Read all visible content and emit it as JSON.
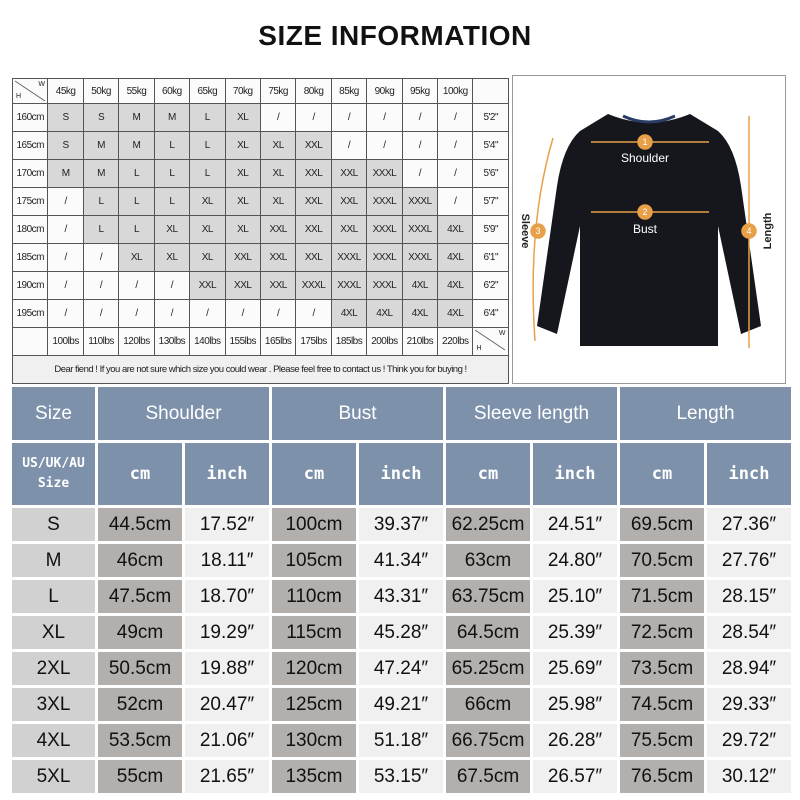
{
  "title": "SIZE INFORMATION",
  "weight_chart": {
    "corner_h": "H",
    "corner_w": "W",
    "weights": [
      "45kg",
      "50kg",
      "55kg",
      "60kg",
      "65kg",
      "70kg",
      "75kg",
      "80kg",
      "85kg",
      "90kg",
      "95kg",
      "100kg"
    ],
    "rows": [
      {
        "height": "160cm",
        "feet": "5'2\"",
        "sizes": [
          "S",
          "S",
          "M",
          "M",
          "L",
          "XL",
          "/",
          "/",
          "/",
          "/",
          "/",
          "/"
        ]
      },
      {
        "height": "165cm",
        "feet": "5'4\"",
        "sizes": [
          "S",
          "M",
          "M",
          "L",
          "L",
          "XL",
          "XL",
          "XXL",
          "/",
          "/",
          "/",
          "/"
        ]
      },
      {
        "height": "170cm",
        "feet": "5'6\"",
        "sizes": [
          "M",
          "M",
          "L",
          "L",
          "L",
          "XL",
          "XL",
          "XXL",
          "XXL",
          "XXXL",
          "/",
          "/"
        ]
      },
      {
        "height": "175cm",
        "feet": "5'7\"",
        "sizes": [
          "/",
          "L",
          "L",
          "L",
          "XL",
          "XL",
          "XL",
          "XXL",
          "XXL",
          "XXXL",
          "XXXL",
          "/"
        ]
      },
      {
        "height": "180cm",
        "feet": "5'9\"",
        "sizes": [
          "/",
          "L",
          "L",
          "XL",
          "XL",
          "XL",
          "XXL",
          "XXL",
          "XXL",
          "XXXL",
          "XXXL",
          "4XL"
        ]
      },
      {
        "height": "185cm",
        "feet": "6'1\"",
        "sizes": [
          "/",
          "/",
          "XL",
          "XL",
          "XL",
          "XXL",
          "XXL",
          "XXL",
          "XXXL",
          "XXXL",
          "XXXL",
          "4XL"
        ]
      },
      {
        "height": "190cm",
        "feet": "6'2\"",
        "sizes": [
          "/",
          "/",
          "/",
          "/",
          "XXL",
          "XXL",
          "XXL",
          "XXXL",
          "XXXL",
          "XXXL",
          "4XL",
          "4XL"
        ]
      },
      {
        "height": "195cm",
        "feet": "6'4\"",
        "sizes": [
          "/",
          "/",
          "/",
          "/",
          "/",
          "/",
          "/",
          "/",
          "4XL",
          "4XL",
          "4XL",
          "4XL"
        ]
      }
    ],
    "pounds": [
      "100lbs",
      "110lbs",
      "120lbs",
      "130lbs",
      "140lbs",
      "155lbs",
      "165lbs",
      "175lbs",
      "185lbs",
      "200lbs",
      "210lbs",
      "220lbs"
    ],
    "note": "Dear fiend ! If you are not sure which size you could wear . Please feel free to contact us ! Think you for buying !"
  },
  "diagram": {
    "labels": [
      {
        "num": "1",
        "text": "Shoulder"
      },
      {
        "num": "2",
        "text": "Bust"
      },
      {
        "num": "3",
        "text": "Sleeve"
      },
      {
        "num": "4",
        "text": "Length"
      }
    ],
    "arrow_color": "#e8a048",
    "garment_color": "#15171c"
  },
  "size_table": {
    "headers": [
      "Size",
      "Shoulder",
      "Bust",
      "Sleeve length",
      "Length"
    ],
    "size_label": "US/UK/AU",
    "size_label2": "Size",
    "unit_cm": "cm",
    "unit_inch": "inch",
    "rows": [
      [
        "S",
        "44.5cm",
        "17.52″",
        "100cm",
        "39.37″",
        "62.25cm",
        "24.51″",
        "69.5cm",
        "27.36″"
      ],
      [
        "M",
        "46cm",
        "18.11″",
        "105cm",
        "41.34″",
        "63cm",
        "24.80″",
        "70.5cm",
        "27.76″"
      ],
      [
        "L",
        "47.5cm",
        "18.70″",
        "110cm",
        "43.31″",
        "63.75cm",
        "25.10″",
        "71.5cm",
        "28.15″"
      ],
      [
        "XL",
        "49cm",
        "19.29″",
        "115cm",
        "45.28″",
        "64.5cm",
        "25.39″",
        "72.5cm",
        "28.54″"
      ],
      [
        "2XL",
        "50.5cm",
        "19.88″",
        "120cm",
        "47.24″",
        "65.25cm",
        "25.69″",
        "73.5cm",
        "28.94″"
      ],
      [
        "3XL",
        "52cm",
        "20.47″",
        "125cm",
        "49.21″",
        "66cm",
        "25.98″",
        "74.5cm",
        "29.33″"
      ],
      [
        "4XL",
        "53.5cm",
        "21.06″",
        "130cm",
        "51.18″",
        "66.75cm",
        "26.28″",
        "75.5cm",
        "29.72″"
      ],
      [
        "5XL",
        "55cm",
        "21.65″",
        "135cm",
        "53.15″",
        "67.5cm",
        "26.57″",
        "76.5cm",
        "30.12″"
      ]
    ],
    "colors": {
      "header": "#7d91ab",
      "size_col": "#d1d1d1",
      "cm_col": "#b2afac",
      "inch_col": "#f0f0f0"
    }
  }
}
